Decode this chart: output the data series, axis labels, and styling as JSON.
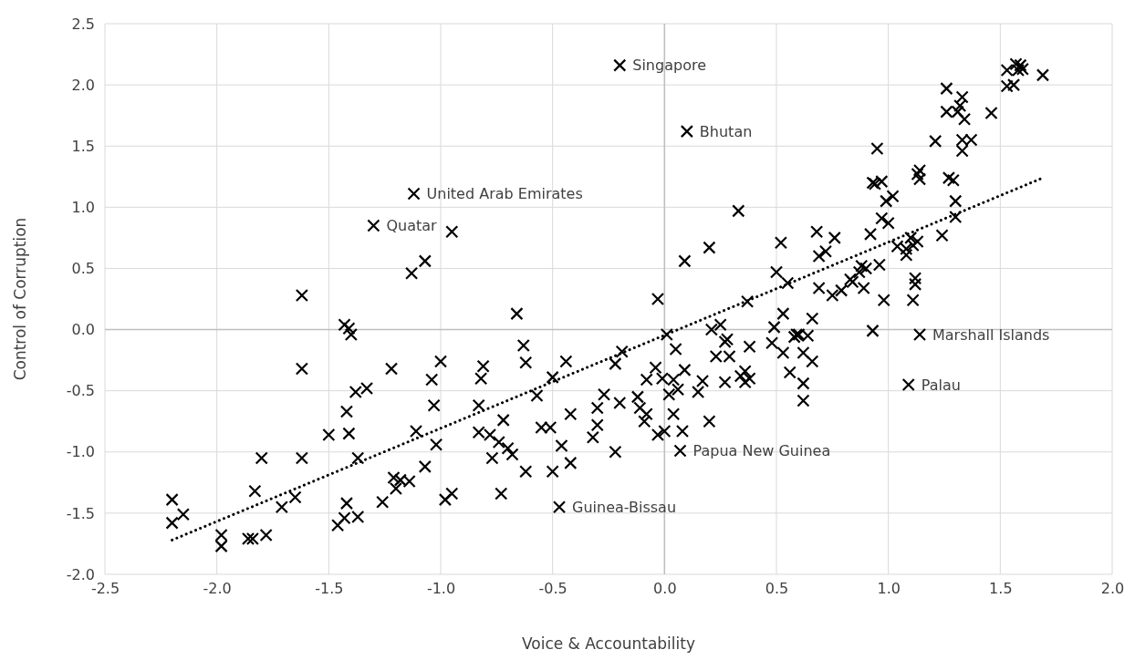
{
  "chart_data": {
    "type": "scatter",
    "xlabel": "Voice & Accountability",
    "ylabel": "Control of Corruption",
    "xlim": [
      -2.5,
      2.0
    ],
    "xticks": [
      {
        "value": -2.5,
        "label": "-2.5"
      },
      {
        "value": -2,
        "label": "-2.0"
      },
      {
        "value": -1.5,
        "label": "-1.5"
      },
      {
        "value": -1,
        "label": "-1.0"
      },
      {
        "value": -0.5,
        "label": "-0.5"
      },
      {
        "value": 0,
        "label": "0.0"
      },
      {
        "value": 0.5,
        "label": "0.5"
      },
      {
        "value": 1,
        "label": "1.0"
      },
      {
        "value": 1.5,
        "label": "1.5"
      },
      {
        "value": 2,
        "label": "2.0"
      }
    ],
    "ylim": [
      -2.0,
      2.5
    ],
    "yticks": [
      {
        "value": -2,
        "label": "-2.0"
      },
      {
        "value": -1.5,
        "label": "-1.5"
      },
      {
        "value": -1,
        "label": "-1.0"
      },
      {
        "value": -0.5,
        "label": "-0.5"
      },
      {
        "value": 0,
        "label": "0.0"
      },
      {
        "value": 0.5,
        "label": "0.5"
      },
      {
        "value": 1,
        "label": "1.0"
      },
      {
        "value": 1.5,
        "label": "1.5"
      },
      {
        "value": 2,
        "label": "2.0"
      },
      {
        "value": 2.5,
        "label": "2.5"
      }
    ],
    "grid": true,
    "marker": "cross",
    "series": [
      {
        "color": "#000000",
        "x": [
          -2.2,
          -2.2,
          -2.15,
          -1.98,
          -1.98,
          -1.86,
          -1.84,
          -1.78,
          -1.83,
          -1.8,
          -1.71,
          -1.65,
          -1.62,
          -1.62,
          -1.62,
          -1.5,
          -1.46,
          -1.43,
          -1.42,
          -1.42,
          -1.41,
          -1.43,
          -1.41,
          -1.4,
          -1.38,
          -1.37,
          -1.37,
          -1.33,
          -1.3,
          -1.26,
          -1.22,
          -1.21,
          -1.2,
          -1.18,
          -1.14,
          -1.13,
          -1.12,
          -1.11,
          -1.07,
          -1.07,
          -1.04,
          -1.03,
          -1.02,
          -1.0,
          -0.98,
          -0.95,
          -0.95,
          -0.83,
          -0.83,
          -0.82,
          -0.81,
          -0.78,
          -0.77,
          -0.74,
          -0.72,
          -0.73,
          -0.7,
          -0.68,
          -0.66,
          -0.63,
          -0.62,
          -0.62,
          -0.57,
          -0.55,
          -0.51,
          -0.5,
          -0.5,
          -0.46,
          -0.44,
          -0.42,
          -0.42,
          -0.47,
          -0.32,
          -0.3,
          -0.3,
          -0.27,
          -0.22,
          -0.22,
          -0.2,
          -0.19,
          -0.2,
          -0.12,
          -0.11,
          -0.09,
          -0.08,
          -0.08,
          -0.04,
          -0.03,
          -0.03,
          -0.01,
          0.0,
          0.01,
          0.02,
          0.04,
          0.04,
          0.05,
          0.06,
          0.08,
          0.07,
          0.09,
          0.09,
          0.1,
          0.15,
          0.17,
          0.2,
          0.2,
          0.21,
          0.23,
          0.25,
          0.27,
          0.27,
          0.28,
          0.29,
          0.33,
          0.34,
          0.36,
          0.36,
          0.37,
          0.38,
          0.38,
          0.48,
          0.49,
          0.5,
          0.52,
          0.53,
          0.53,
          0.55,
          0.56,
          0.58,
          0.59,
          0.6,
          0.62,
          0.62,
          0.62,
          0.64,
          0.66,
          0.66,
          0.68,
          0.69,
          0.69,
          0.72,
          0.75,
          0.76,
          0.79,
          0.83,
          0.84,
          0.87,
          0.88,
          0.89,
          0.9,
          0.92,
          0.93,
          0.93,
          0.94,
          0.95,
          0.96,
          0.97,
          0.98,
          0.97,
          0.99,
          1.0,
          1.02,
          1.04,
          1.08,
          1.08,
          1.1,
          1.11,
          1.11,
          1.12,
          1.12,
          1.13,
          1.14,
          1.09,
          1.13,
          1.14,
          1.14,
          1.21,
          1.24,
          1.26,
          1.26,
          1.27,
          1.29,
          1.3,
          1.3,
          1.31,
          1.32,
          1.33,
          1.33,
          1.34,
          1.33,
          1.37,
          1.46,
          1.53,
          1.53,
          1.56,
          1.57,
          1.58,
          1.59,
          1.6,
          1.69
        ],
        "values": [
          -1.39,
          -1.58,
          -1.51,
          -1.68,
          -1.77,
          -1.71,
          -1.71,
          -1.68,
          -1.32,
          -1.05,
          -1.45,
          -1.37,
          -1.05,
          -0.32,
          0.28,
          -0.86,
          -1.6,
          -1.54,
          -1.42,
          -0.67,
          -0.85,
          0.04,
          0.01,
          -0.04,
          -0.51,
          -1.05,
          -1.53,
          -0.48,
          0.85,
          -1.41,
          -0.32,
          -1.21,
          -1.3,
          -1.23,
          -1.24,
          0.46,
          1.11,
          -0.83,
          0.56,
          -1.12,
          -0.41,
          -0.62,
          -0.94,
          -0.26,
          -1.39,
          -1.34,
          0.8,
          -0.62,
          -0.84,
          -0.4,
          -0.3,
          -0.86,
          -1.05,
          -0.92,
          -0.74,
          -1.34,
          -0.97,
          -1.02,
          0.13,
          -0.13,
          -0.27,
          -1.16,
          -0.54,
          -0.8,
          -0.8,
          -0.39,
          -1.16,
          -0.95,
          -0.26,
          -0.69,
          -1.09,
          -1.45,
          -0.88,
          -0.64,
          -0.78,
          -0.53,
          -0.28,
          -1.0,
          -0.6,
          -0.18,
          2.16,
          -0.55,
          -0.64,
          -0.75,
          -0.41,
          -0.69,
          -0.31,
          -0.86,
          0.25,
          -0.4,
          -0.83,
          -0.04,
          -0.53,
          -0.41,
          -0.69,
          -0.16,
          -0.49,
          -0.83,
          -0.99,
          0.56,
          -0.33,
          1.62,
          -0.51,
          -0.42,
          0.67,
          -0.75,
          0.0,
          -0.22,
          0.04,
          -0.43,
          -0.1,
          -0.08,
          -0.22,
          0.97,
          -0.38,
          -0.34,
          -0.43,
          0.23,
          -0.14,
          -0.4,
          -0.11,
          0.02,
          0.47,
          0.71,
          0.13,
          -0.19,
          0.38,
          -0.35,
          -0.06,
          -0.04,
          -0.04,
          -0.19,
          -0.58,
          -0.44,
          -0.05,
          0.09,
          -0.26,
          0.8,
          0.6,
          0.34,
          0.64,
          0.28,
          0.75,
          0.32,
          0.41,
          0.39,
          0.47,
          0.52,
          0.34,
          0.5,
          0.78,
          1.2,
          -0.01,
          1.19,
          1.48,
          0.53,
          0.91,
          0.24,
          1.21,
          1.05,
          0.87,
          1.09,
          0.68,
          0.61,
          0.66,
          0.75,
          0.24,
          0.69,
          0.37,
          0.42,
          0.72,
          -0.04,
          -0.45,
          1.27,
          1.3,
          1.23,
          1.54,
          0.77,
          1.97,
          1.78,
          1.24,
          1.22,
          1.05,
          0.92,
          1.78,
          1.83,
          1.9,
          1.55,
          1.72,
          1.46,
          1.55,
          1.77,
          2.12,
          1.99,
          2.0,
          2.17,
          2.12,
          2.16,
          2.13,
          2.08
        ]
      },
      {
        "type": "line",
        "color": "#000000",
        "line_style": "dotted",
        "marker": "none",
        "x": [
          -2.2,
          1.69
        ],
        "values": [
          -1.72,
          1.24
        ]
      }
    ],
    "annotations": [
      {
        "text": "Singapore",
        "x": -0.2,
        "y": 2.16
      },
      {
        "text": "Bhutan",
        "x": 0.1,
        "y": 1.62
      },
      {
        "text": "United Arab Emirates",
        "x": -1.12,
        "y": 1.11
      },
      {
        "text": "Quatar",
        "x": -1.3,
        "y": 0.85
      },
      {
        "text": "Marshall Islands",
        "x": 1.14,
        "y": -0.04
      },
      {
        "text": "Palau",
        "x": 1.09,
        "y": -0.45
      },
      {
        "text": "Papua New Guinea",
        "x": 0.07,
        "y": -0.99
      },
      {
        "text": "Guinea-Bissau",
        "x": -0.47,
        "y": -1.45
      }
    ]
  }
}
